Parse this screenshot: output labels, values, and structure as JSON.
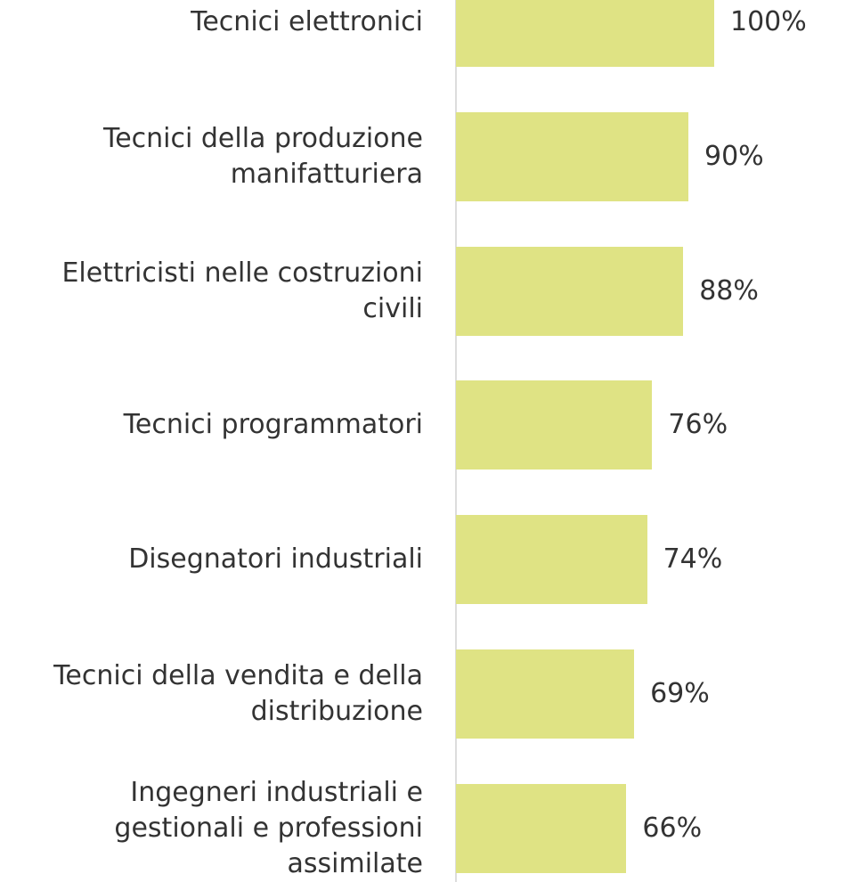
{
  "chart_data": {
    "type": "bar",
    "orientation": "horizontal",
    "categories": [
      "Tecnici elettronici",
      "Tecnici della produzione manifatturiera",
      "Elettricisti nelle costruzioni civili",
      "Tecnici programmatori",
      "Disegnatori industriali",
      "Tecnici della vendita e della distribuzione",
      "Ingegneri industriali e gestionali e professioni assimilate"
    ],
    "values": [
      100,
      90,
      88,
      76,
      74,
      69,
      66
    ],
    "value_labels": [
      "100%",
      "90%",
      "88%",
      "76%",
      "74%",
      "69%",
      "66%"
    ],
    "color": "#dfe384",
    "xlim": [
      0,
      100
    ]
  }
}
